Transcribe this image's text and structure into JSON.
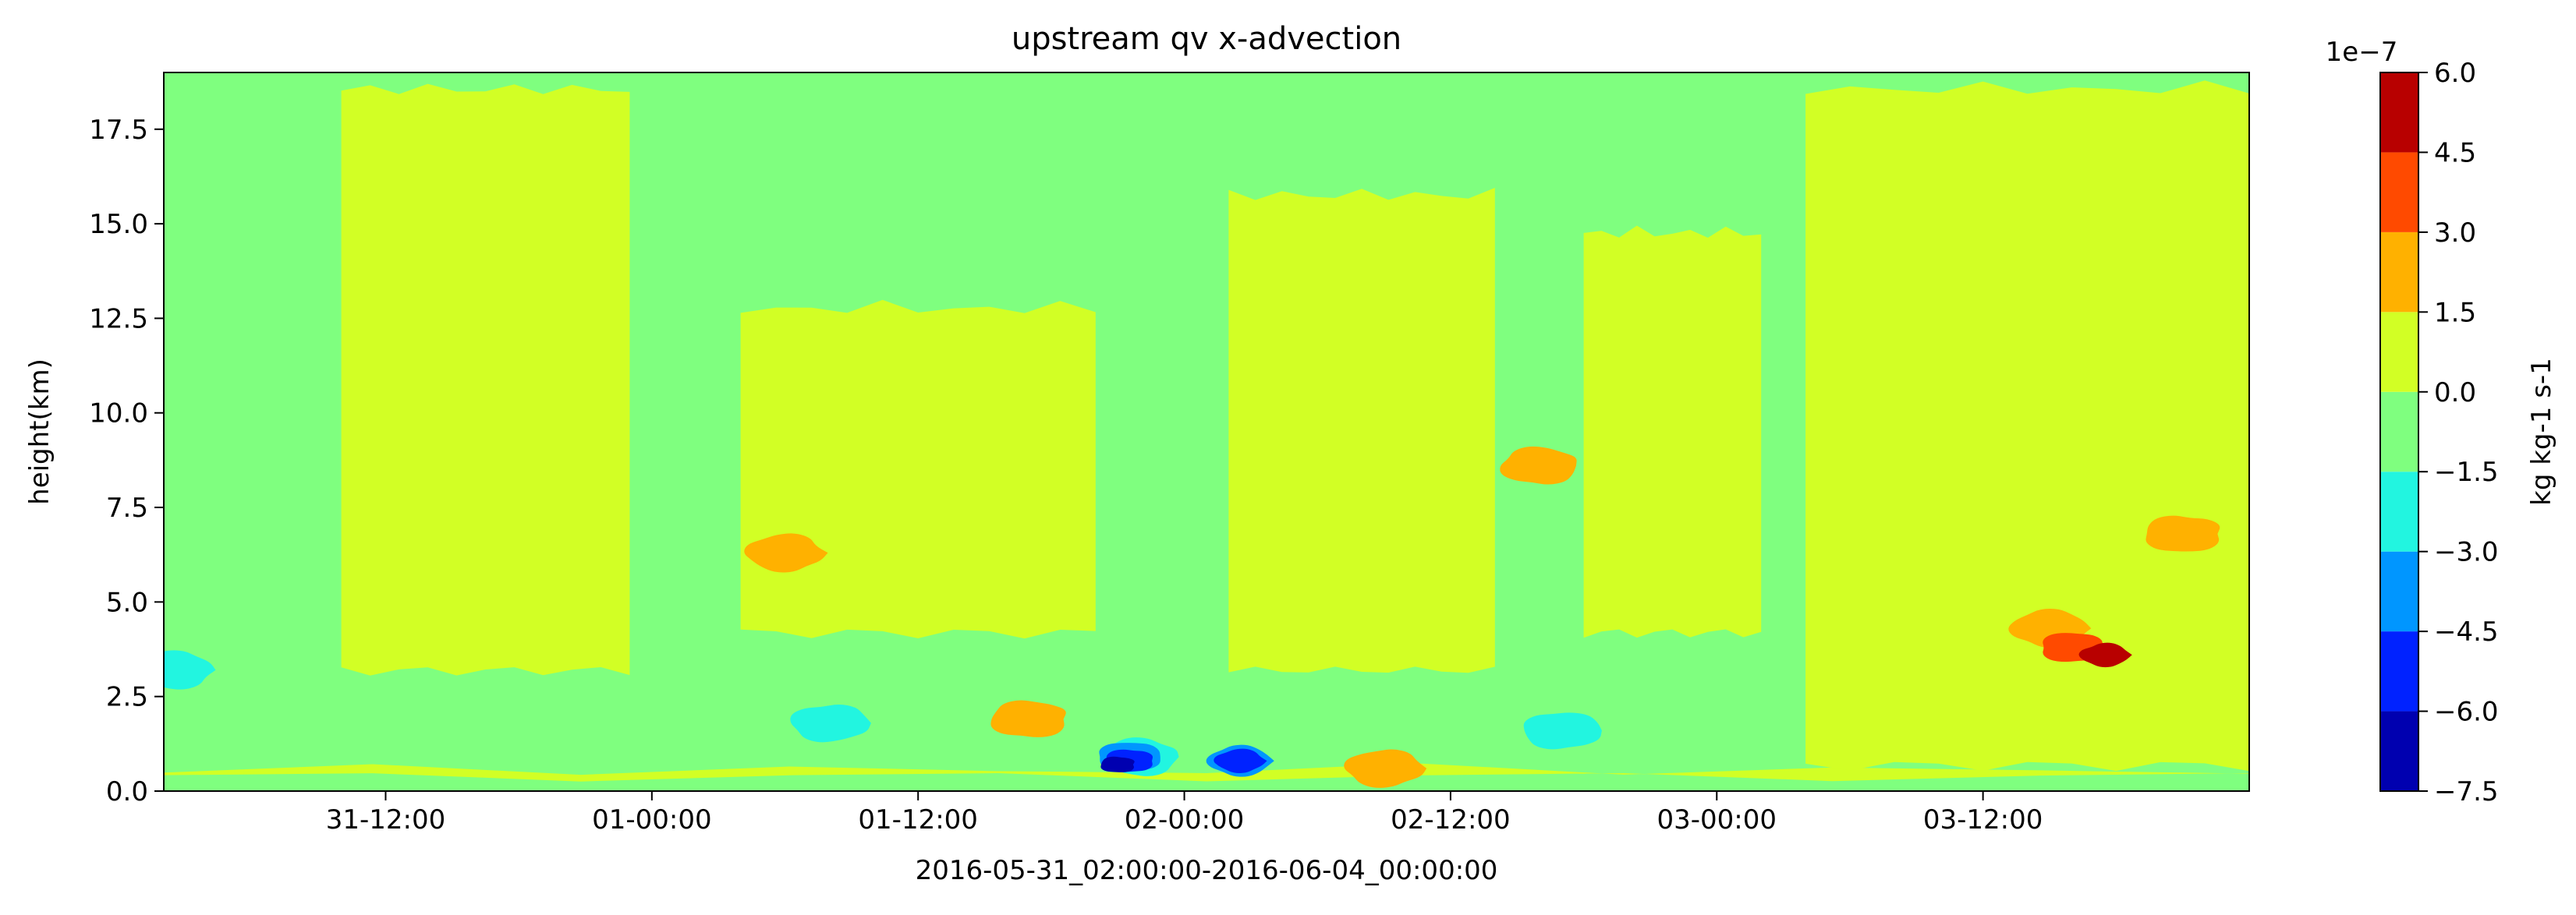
{
  "chart_data": {
    "type": "heatmap",
    "subtype": "filled-contour",
    "title": "upstream qv x-advection",
    "xlabel": "2016-05-31_02:00:00-2016-06-04_00:00:00",
    "ylabel": "height(km)",
    "x_range": [
      "2016-05-31 02:00",
      "2016-06-04 00:00"
    ],
    "x_ticks": [
      "31-12:00",
      "01-00:00",
      "01-12:00",
      "02-00:00",
      "02-12:00",
      "03-00:00",
      "03-12:00"
    ],
    "x_tick_times": [
      "2016-05-31 12:00",
      "2016-06-01 00:00",
      "2016-06-01 12:00",
      "2016-06-02 00:00",
      "2016-06-02 12:00",
      "2016-06-03 00:00",
      "2016-06-03 12:00"
    ],
    "ylim": [
      0,
      19
    ],
    "y_ticks": [
      "0.0",
      "2.5",
      "5.0",
      "7.5",
      "10.0",
      "12.5",
      "15.0",
      "17.5"
    ],
    "y_tick_values": [
      0,
      2.5,
      5,
      7.5,
      10,
      12.5,
      15,
      17.5
    ],
    "grid": false,
    "colorbar": {
      "label": "kg kg-1 s-1",
      "offset_text": "1e−7",
      "tick_labels": [
        "6.0",
        "4.5",
        "3.0",
        "1.5",
        "0.0",
        "−1.5",
        "−3.0",
        "−4.5",
        "−6.0",
        "−7.5"
      ],
      "levels": [
        -7.5,
        -6.0,
        -4.5,
        -3.0,
        -1.5,
        0.0,
        1.5,
        3.0,
        4.5,
        6.0
      ],
      "colors": [
        "#0000b0",
        "#0022ff",
        "#0096ff",
        "#22f5e0",
        "#7fff7f",
        "#d2ff25",
        "#ffb100",
        "#ff4a00",
        "#b80000"
      ]
    },
    "background_level_color": "#7fff7f",
    "features": [
      {
        "kind": "band",
        "color": "#d2ff25",
        "t": [
          "2016-05-31 02:00",
          "2016-06-04 00:00"
        ],
        "z": [
          0.2,
          0.8
        ]
      },
      {
        "kind": "region",
        "color": "#d2ff25",
        "t": [
          "2016-05-31 10:00",
          "2016-05-31 23:00"
        ],
        "z": [
          3.0,
          18.8
        ]
      },
      {
        "kind": "region",
        "color": "#d2ff25",
        "t": [
          "2016-06-01 04:00",
          "2016-06-01 20:00"
        ],
        "z": [
          4.0,
          13.0
        ]
      },
      {
        "kind": "region",
        "color": "#d2ff25",
        "t": [
          "2016-06-02 02:00",
          "2016-06-02 14:00"
        ],
        "z": [
          3.0,
          16.0
        ]
      },
      {
        "kind": "region",
        "color": "#d2ff25",
        "t": [
          "2016-06-02 18:00",
          "2016-06-03 02:00"
        ],
        "z": [
          4.0,
          15.0
        ]
      },
      {
        "kind": "region",
        "color": "#d2ff25",
        "t": [
          "2016-06-03 04:00",
          "2016-06-04 00:00"
        ],
        "z": [
          0.5,
          18.8
        ]
      },
      {
        "kind": "patch",
        "color": "#ffb100",
        "t": "2016-06-03 15:00",
        "z": 4.3
      },
      {
        "kind": "patch",
        "color": "#ff4a00",
        "t": "2016-06-03 16:00",
        "z": 3.8
      },
      {
        "kind": "patch",
        "color": "#b80000",
        "t": "2016-06-03 17:30",
        "z": 3.6
      },
      {
        "kind": "patch",
        "color": "#ffb100",
        "t": "2016-06-03 21:00",
        "z": 6.8
      },
      {
        "kind": "patch",
        "color": "#ffb100",
        "t": "2016-06-01 06:00",
        "z": 6.3
      },
      {
        "kind": "patch",
        "color": "#ffb100",
        "t": "2016-06-01 17:00",
        "z": 1.9
      },
      {
        "kind": "patch",
        "color": "#ffb100",
        "t": "2016-06-02 09:00",
        "z": 0.6
      },
      {
        "kind": "patch",
        "color": "#ffb100",
        "t": "2016-06-02 16:00",
        "z": 8.6
      },
      {
        "kind": "patch",
        "color": "#22f5e0",
        "t": "2016-06-01 08:00",
        "z": 1.8
      },
      {
        "kind": "patch",
        "color": "#22f5e0",
        "t": "2016-06-01 22:00",
        "z": 0.9
      },
      {
        "kind": "patch",
        "color": "#22f5e0",
        "t": "2016-06-02 17:00",
        "z": 1.6
      },
      {
        "kind": "patch",
        "color": "#22f5e0",
        "t": "2016-05-31 02:30",
        "z": 3.2
      },
      {
        "kind": "patch",
        "color": "#0096ff",
        "t": "2016-06-01 21:30",
        "z": 0.9
      },
      {
        "kind": "patch",
        "color": "#0096ff",
        "t": "2016-06-02 02:30",
        "z": 0.8
      },
      {
        "kind": "patch",
        "color": "#0022ff",
        "t": "2016-06-01 21:30",
        "z": 0.8
      },
      {
        "kind": "patch",
        "color": "#0022ff",
        "t": "2016-06-02 02:30",
        "z": 0.8
      },
      {
        "kind": "patch",
        "color": "#0000b0",
        "t": "2016-06-01 21:00",
        "z": 0.7
      }
    ]
  }
}
